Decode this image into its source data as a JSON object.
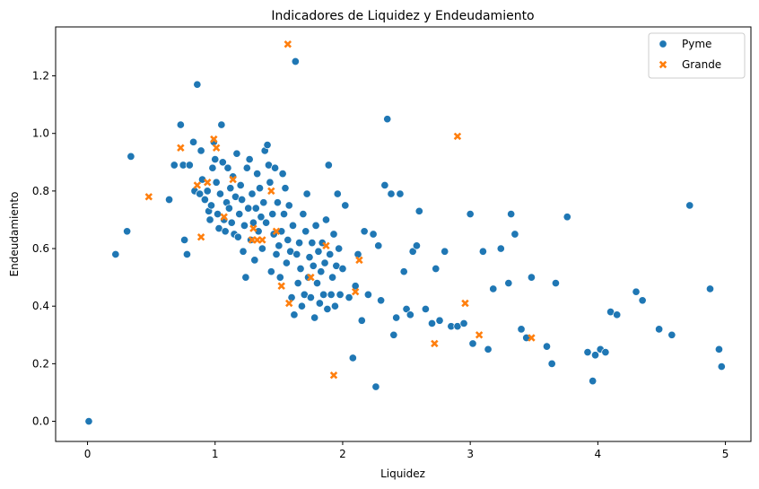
{
  "chart_data": {
    "type": "scatter",
    "title": "Indicadores de Liquidez y Endeudamiento",
    "xlabel": "Liquidez",
    "ylabel": "Endeudamiento",
    "xlim": [
      -0.25,
      5.2
    ],
    "ylim": [
      -0.07,
      1.37
    ],
    "xticks": [
      0,
      1,
      2,
      3,
      4,
      5
    ],
    "xtick_labels": [
      "0",
      "1",
      "2",
      "3",
      "4",
      "5"
    ],
    "yticks": [
      0.0,
      0.2,
      0.4,
      0.6,
      0.8,
      1.0,
      1.2
    ],
    "ytick_labels": [
      "0.0",
      "0.2",
      "0.4",
      "0.6",
      "0.8",
      "1.0",
      "1.2"
    ],
    "grid": false,
    "legend_position": "top-right",
    "series": [
      {
        "name": "Pyme",
        "color": "#1f77b4",
        "marker": "circle",
        "points": [
          [
            0.01,
            0.0
          ],
          [
            0.22,
            0.58
          ],
          [
            0.31,
            0.66
          ],
          [
            0.34,
            0.92
          ],
          [
            0.64,
            0.77
          ],
          [
            0.68,
            0.89
          ],
          [
            0.73,
            1.03
          ],
          [
            0.75,
            0.89
          ],
          [
            0.76,
            0.63
          ],
          [
            0.78,
            0.58
          ],
          [
            0.8,
            0.89
          ],
          [
            0.83,
            0.97
          ],
          [
            0.84,
            0.8
          ],
          [
            0.86,
            1.17
          ],
          [
            0.88,
            0.79
          ],
          [
            0.89,
            0.94
          ],
          [
            0.9,
            0.84
          ],
          [
            0.92,
            0.77
          ],
          [
            0.94,
            0.8
          ],
          [
            0.95,
            0.73
          ],
          [
            0.96,
            0.7
          ],
          [
            0.97,
            0.75
          ],
          [
            0.98,
            0.88
          ],
          [
            0.99,
            0.97
          ],
          [
            1.0,
            0.91
          ],
          [
            1.01,
            0.83
          ],
          [
            1.02,
            0.72
          ],
          [
            1.03,
            0.67
          ],
          [
            1.04,
            0.79
          ],
          [
            1.05,
            1.03
          ],
          [
            1.06,
            0.9
          ],
          [
            1.07,
            0.7
          ],
          [
            1.08,
            0.66
          ],
          [
            1.09,
            0.76
          ],
          [
            1.1,
            0.88
          ],
          [
            1.11,
            0.74
          ],
          [
            1.12,
            0.81
          ],
          [
            1.13,
            0.69
          ],
          [
            1.14,
            0.85
          ],
          [
            1.15,
            0.65
          ],
          [
            1.16,
            0.78
          ],
          [
            1.17,
            0.93
          ],
          [
            1.18,
            0.64
          ],
          [
            1.19,
            0.72
          ],
          [
            1.2,
            0.82
          ],
          [
            1.21,
            0.77
          ],
          [
            1.22,
            0.59
          ],
          [
            1.23,
            0.68
          ],
          [
            1.24,
            0.5
          ],
          [
            1.25,
            0.88
          ],
          [
            1.26,
            0.74
          ],
          [
            1.27,
            0.91
          ],
          [
            1.28,
            0.63
          ],
          [
            1.29,
            0.79
          ],
          [
            1.3,
            0.69
          ],
          [
            1.31,
            0.56
          ],
          [
            1.32,
            0.74
          ],
          [
            1.33,
            0.86
          ],
          [
            1.34,
            0.66
          ],
          [
            1.35,
            0.81
          ],
          [
            1.36,
            0.71
          ],
          [
            1.37,
            0.6
          ],
          [
            1.38,
            0.76
          ],
          [
            1.39,
            0.94
          ],
          [
            1.4,
            0.69
          ],
          [
            1.41,
            0.96
          ],
          [
            1.42,
            0.89
          ],
          [
            1.43,
            0.83
          ],
          [
            1.44,
            0.52
          ],
          [
            1.45,
            0.72
          ],
          [
            1.46,
            0.65
          ],
          [
            1.47,
            0.88
          ],
          [
            1.48,
            0.58
          ],
          [
            1.49,
            0.76
          ],
          [
            1.5,
            0.61
          ],
          [
            1.51,
            0.5
          ],
          [
            1.52,
            0.66
          ],
          [
            1.53,
            0.86
          ],
          [
            1.54,
            0.72
          ],
          [
            1.55,
            0.81
          ],
          [
            1.56,
            0.55
          ],
          [
            1.57,
            0.63
          ],
          [
            1.58,
            0.75
          ],
          [
            1.59,
            0.59
          ],
          [
            1.6,
            0.43
          ],
          [
            1.61,
            0.68
          ],
          [
            1.62,
            0.37
          ],
          [
            1.63,
            1.25
          ],
          [
            1.64,
            0.58
          ],
          [
            1.65,
            0.48
          ],
          [
            1.66,
            0.62
          ],
          [
            1.67,
            0.53
          ],
          [
            1.68,
            0.4
          ],
          [
            1.69,
            0.72
          ],
          [
            1.7,
            0.44
          ],
          [
            1.71,
            0.66
          ],
          [
            1.72,
            0.79
          ],
          [
            1.73,
            0.5
          ],
          [
            1.74,
            0.57
          ],
          [
            1.75,
            0.43
          ],
          [
            1.76,
            0.62
          ],
          [
            1.77,
            0.54
          ],
          [
            1.78,
            0.36
          ],
          [
            1.79,
            0.68
          ],
          [
            1.8,
            0.48
          ],
          [
            1.81,
            0.59
          ],
          [
            1.82,
            0.41
          ],
          [
            1.83,
            0.52
          ],
          [
            1.84,
            0.62
          ],
          [
            1.85,
            0.44
          ],
          [
            1.86,
            0.55
          ],
          [
            1.87,
            0.7
          ],
          [
            1.88,
            0.39
          ],
          [
            1.89,
            0.89
          ],
          [
            1.9,
            0.58
          ],
          [
            1.91,
            0.44
          ],
          [
            1.92,
            0.5
          ],
          [
            1.93,
            0.65
          ],
          [
            1.94,
            0.4
          ],
          [
            1.95,
            0.54
          ],
          [
            1.96,
            0.79
          ],
          [
            1.97,
            0.6
          ],
          [
            1.98,
            0.44
          ],
          [
            2.0,
            0.53
          ],
          [
            2.02,
            0.75
          ],
          [
            2.05,
            0.43
          ],
          [
            2.08,
            0.22
          ],
          [
            2.1,
            0.47
          ],
          [
            2.12,
            0.58
          ],
          [
            2.15,
            0.35
          ],
          [
            2.17,
            0.66
          ],
          [
            2.2,
            0.44
          ],
          [
            2.24,
            0.65
          ],
          [
            2.26,
            0.12
          ],
          [
            2.28,
            0.61
          ],
          [
            2.3,
            0.42
          ],
          [
            2.33,
            0.82
          ],
          [
            2.35,
            1.05
          ],
          [
            2.38,
            0.79
          ],
          [
            2.4,
            0.3
          ],
          [
            2.42,
            0.36
          ],
          [
            2.45,
            0.79
          ],
          [
            2.48,
            0.52
          ],
          [
            2.5,
            0.39
          ],
          [
            2.53,
            0.37
          ],
          [
            2.55,
            0.59
          ],
          [
            2.58,
            0.61
          ],
          [
            2.6,
            0.73
          ],
          [
            2.65,
            0.39
          ],
          [
            2.7,
            0.34
          ],
          [
            2.73,
            0.53
          ],
          [
            2.76,
            0.35
          ],
          [
            2.8,
            0.59
          ],
          [
            2.85,
            0.33
          ],
          [
            2.9,
            0.33
          ],
          [
            2.95,
            0.34
          ],
          [
            3.0,
            0.72
          ],
          [
            3.02,
            0.27
          ],
          [
            3.1,
            0.59
          ],
          [
            3.14,
            0.25
          ],
          [
            3.18,
            0.46
          ],
          [
            3.24,
            0.6
          ],
          [
            3.3,
            0.48
          ],
          [
            3.32,
            0.72
          ],
          [
            3.35,
            0.65
          ],
          [
            3.4,
            0.32
          ],
          [
            3.44,
            0.29
          ],
          [
            3.48,
            0.5
          ],
          [
            3.6,
            0.26
          ],
          [
            3.64,
            0.2
          ],
          [
            3.67,
            0.48
          ],
          [
            3.76,
            0.71
          ],
          [
            3.92,
            0.24
          ],
          [
            3.96,
            0.14
          ],
          [
            3.98,
            0.23
          ],
          [
            4.02,
            0.25
          ],
          [
            4.06,
            0.24
          ],
          [
            4.1,
            0.38
          ],
          [
            4.15,
            0.37
          ],
          [
            4.3,
            0.45
          ],
          [
            4.35,
            0.42
          ],
          [
            4.48,
            0.32
          ],
          [
            4.58,
            0.3
          ],
          [
            4.72,
            0.75
          ],
          [
            4.88,
            0.46
          ],
          [
            4.95,
            0.25
          ],
          [
            4.97,
            0.19
          ]
        ]
      },
      {
        "name": "Grande",
        "color": "#ff7f0e",
        "marker": "x",
        "points": [
          [
            0.48,
            0.78
          ],
          [
            0.73,
            0.95
          ],
          [
            0.86,
            0.82
          ],
          [
            0.89,
            0.64
          ],
          [
            0.94,
            0.83
          ],
          [
            0.99,
            0.98
          ],
          [
            1.01,
            0.95
          ],
          [
            1.07,
            0.71
          ],
          [
            1.14,
            0.84
          ],
          [
            1.29,
            0.63
          ],
          [
            1.3,
            0.67
          ],
          [
            1.33,
            0.63
          ],
          [
            1.37,
            0.63
          ],
          [
            1.44,
            0.8
          ],
          [
            1.48,
            0.66
          ],
          [
            1.52,
            0.47
          ],
          [
            1.57,
            1.31
          ],
          [
            1.58,
            0.41
          ],
          [
            1.75,
            0.5
          ],
          [
            1.87,
            0.61
          ],
          [
            1.93,
            0.16
          ],
          [
            2.1,
            0.45
          ],
          [
            2.13,
            0.56
          ],
          [
            2.72,
            0.27
          ],
          [
            2.9,
            0.99
          ],
          [
            2.96,
            0.41
          ],
          [
            3.07,
            0.3
          ],
          [
            3.48,
            0.29
          ]
        ]
      }
    ]
  }
}
